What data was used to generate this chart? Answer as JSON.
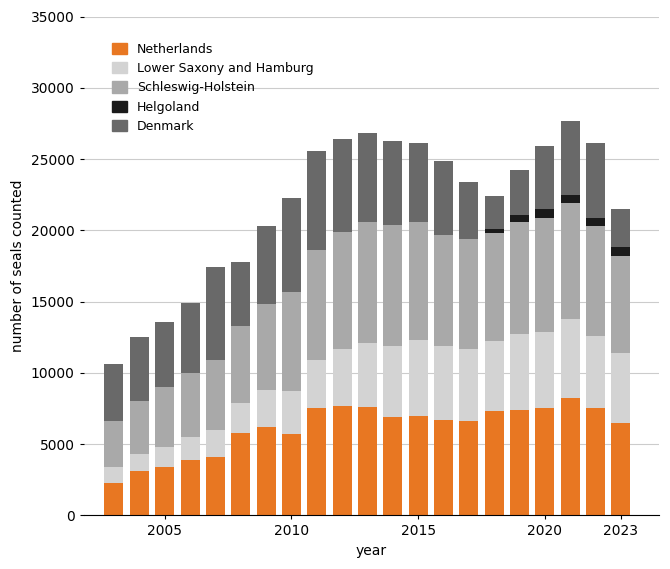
{
  "years": [
    2003,
    2004,
    2005,
    2006,
    2007,
    2008,
    2009,
    2010,
    2011,
    2012,
    2013,
    2014,
    2015,
    2016,
    2017,
    2018,
    2019,
    2020,
    2021,
    2022,
    2023
  ],
  "netherlands": [
    2300,
    3100,
    3400,
    3900,
    4100,
    5800,
    6200,
    5700,
    7500,
    7700,
    7600,
    6900,
    7000,
    6700,
    6600,
    7300,
    7400,
    7500,
    8200,
    7500,
    6500
  ],
  "lower_saxony": [
    1100,
    1200,
    1400,
    1600,
    1900,
    2100,
    2600,
    3000,
    3400,
    4000,
    4500,
    5000,
    5300,
    5200,
    5100,
    4900,
    5300,
    5400,
    5600,
    5100,
    4900
  ],
  "schleswig_holstein": [
    3200,
    3700,
    4200,
    4500,
    4900,
    5400,
    6000,
    7000,
    7700,
    8200,
    8500,
    8500,
    8300,
    7800,
    7700,
    7600,
    7900,
    8000,
    8100,
    7700,
    6800
  ],
  "helgoland": [
    0,
    0,
    0,
    0,
    0,
    0,
    0,
    0,
    0,
    0,
    0,
    0,
    0,
    0,
    0,
    300,
    500,
    600,
    600,
    600,
    600
  ],
  "denmark": [
    4000,
    4500,
    4600,
    4900,
    6500,
    4500,
    5500,
    6600,
    7000,
    6500,
    6200,
    5900,
    5500,
    5200,
    4000,
    2300,
    3100,
    4400,
    5200,
    5200,
    2700
  ],
  "colors": {
    "netherlands": "#E87722",
    "lower_saxony": "#D3D3D3",
    "schleswig_holstein": "#A9A9A9",
    "helgoland": "#1a1a1a",
    "denmark": "#696969"
  },
  "labels": {
    "netherlands": "Netherlands",
    "lower_saxony": "Lower Saxony and Hamburg",
    "schleswig_holstein": "Schleswig-Holstein",
    "helgoland": "Helgoland",
    "denmark": "Denmark"
  },
  "ylabel": "number of seals counted",
  "xlabel": "year",
  "ylim": [
    0,
    35000
  ],
  "yticks": [
    0,
    5000,
    10000,
    15000,
    20000,
    25000,
    30000,
    35000
  ],
  "xticks": [
    2005,
    2010,
    2015,
    2020,
    2023
  ],
  "background_color": "#ffffff",
  "grid_color": "#cccccc"
}
